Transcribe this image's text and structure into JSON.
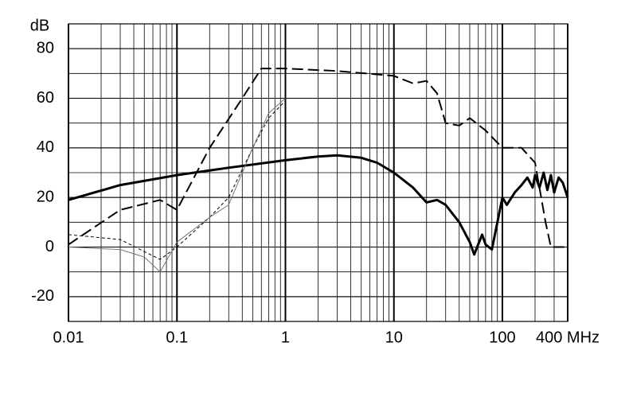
{
  "chart_data": {
    "type": "line",
    "y_label": "dB",
    "xscale": "log",
    "xlim": [
      0.01,
      400
    ],
    "xticks": [
      0.01,
      0.1,
      1,
      10,
      100,
      {
        "value": 400,
        "label": "400 MHz"
      }
    ],
    "ylim": [
      -30,
      90
    ],
    "yticks": [
      -20,
      0,
      20,
      40,
      60,
      80
    ],
    "grid": true,
    "series": [
      {
        "color": "#000000",
        "style": "solid-thick",
        "x": [
          0.01,
          0.03,
          0.1,
          0.3,
          1,
          2,
          3,
          5,
          7,
          10,
          15,
          20,
          25,
          30,
          40,
          50,
          55,
          65,
          70,
          80,
          90,
          100,
          110,
          130,
          150,
          170,
          190,
          200,
          220,
          240,
          260,
          280,
          300,
          330,
          360,
          400
        ],
        "values": [
          19,
          25,
          29,
          32,
          35,
          36.5,
          37,
          36,
          34,
          30,
          24,
          18,
          19,
          17,
          10,
          2,
          -3,
          5,
          1,
          -1,
          10,
          20,
          17,
          22,
          25,
          28,
          24,
          29,
          24,
          30,
          23,
          29,
          22,
          28,
          26,
          20
        ]
      },
      {
        "color": "#000000",
        "style": "dashed",
        "x": [
          0.01,
          0.03,
          0.07,
          0.1,
          0.2,
          0.4,
          0.6,
          1,
          3,
          10,
          15,
          20,
          25,
          30,
          40,
          50,
          70,
          100,
          150,
          200,
          250,
          280,
          400
        ],
        "values": [
          1,
          15,
          19,
          15,
          40,
          60,
          72,
          72,
          71,
          69,
          66,
          67,
          62,
          50,
          49,
          52,
          47,
          40,
          40,
          34,
          10,
          0,
          0
        ]
      },
      {
        "color": "#000000",
        "style": "dotted",
        "x": [
          0.01,
          0.03,
          0.07,
          0.1,
          0.2,
          0.3,
          0.5,
          0.7,
          1
        ],
        "values": [
          5,
          3,
          -5,
          0,
          12,
          20,
          40,
          52,
          59
        ]
      },
      {
        "color": "#777777",
        "style": "solid-thin",
        "x": [
          0.01,
          0.03,
          0.05,
          0.07,
          0.1,
          0.2,
          0.3,
          0.5,
          0.7,
          1
        ],
        "values": [
          0,
          -1,
          -4,
          -10,
          2,
          12,
          17,
          40,
          54,
          60
        ]
      }
    ]
  }
}
